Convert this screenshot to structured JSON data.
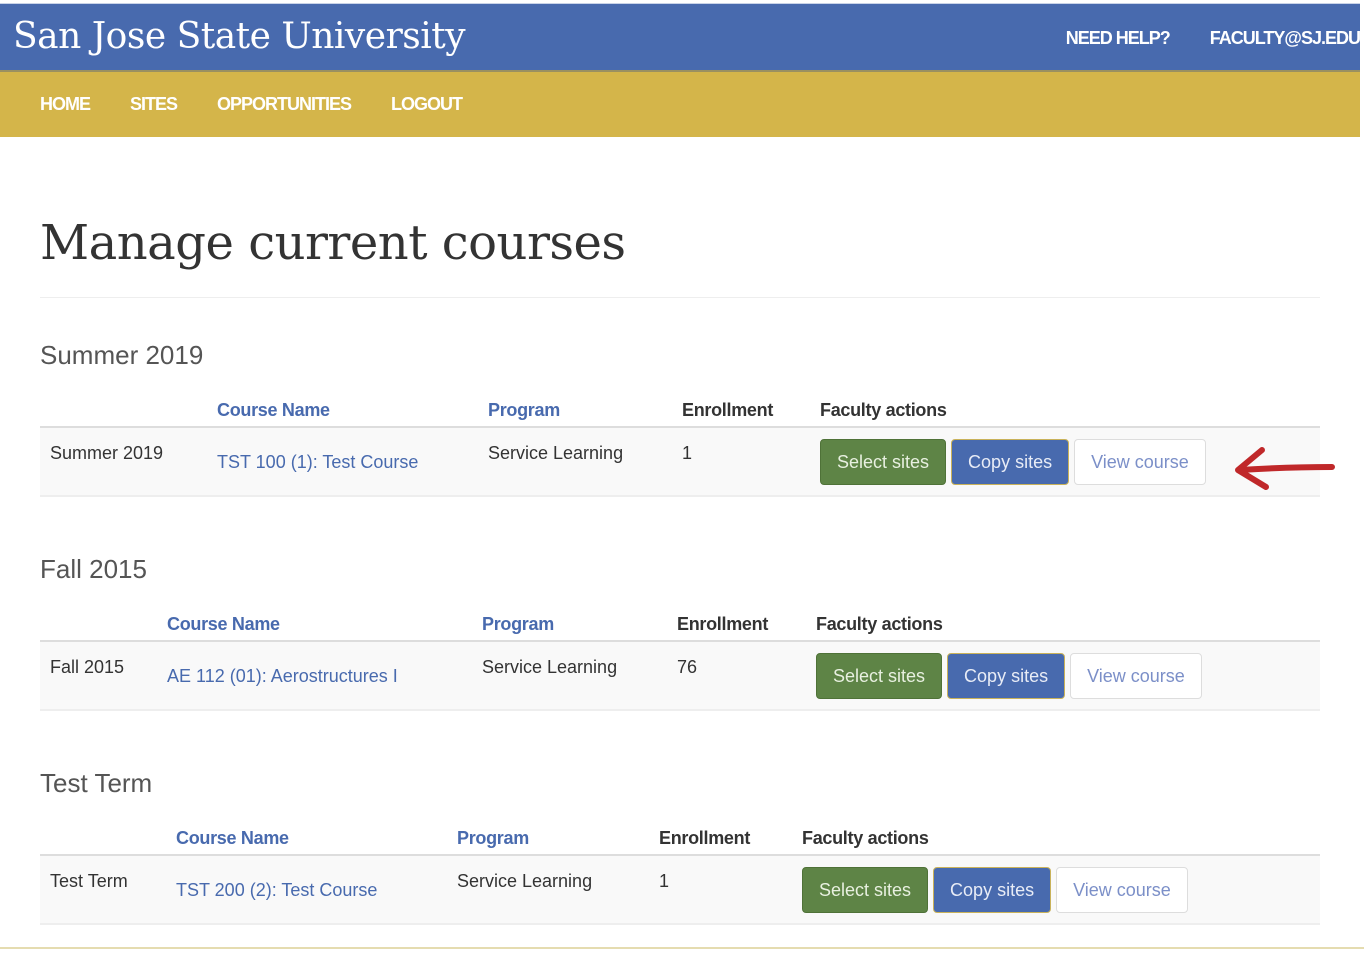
{
  "header": {
    "title": "San Jose State University",
    "links": [
      "NEED HELP?",
      "FACULTY@SJ.EDU"
    ]
  },
  "nav": [
    "HOME",
    "SITES",
    "OPPORTUNITIES",
    "LOGOUT"
  ],
  "page_title": "Manage current courses",
  "columns": {
    "course": "Course Name",
    "program": "Program",
    "enrollment": "Enrollment",
    "actions": "Faculty actions"
  },
  "buttons": {
    "select": "Select sites",
    "copy": "Copy sites",
    "view": "View course"
  },
  "sections": [
    {
      "term": "Summer 2019",
      "row": {
        "term": "Summer 2019",
        "course": "TST 100 (1): Test Course",
        "program": "Service Learning",
        "enrollment": "1"
      }
    },
    {
      "term": "Fall 2015",
      "row": {
        "term": "Fall 2015",
        "course": "AE 112 (01): Aerostructures I",
        "program": "Service Learning",
        "enrollment": "76"
      }
    },
    {
      "term": "Test Term",
      "row": {
        "term": "Test Term",
        "course": "TST 200 (2): Test Course",
        "program": "Service Learning",
        "enrollment": "1"
      }
    }
  ],
  "colors": {
    "header": "#486aae",
    "nav": "#d4b54a",
    "select": "#5e8446",
    "copy": "#486aae",
    "annotation_arrow": "#c0282a"
  }
}
